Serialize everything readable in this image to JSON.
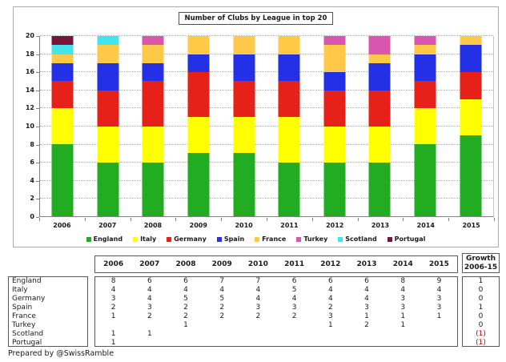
{
  "chart": {
    "title": "Number of Clubs by League in top 20"
  },
  "chart_data": {
    "type": "bar",
    "stacked": true,
    "title": "Number of Clubs by League in top 20",
    "categories": [
      "2006",
      "2007",
      "2008",
      "2009",
      "2010",
      "2011",
      "2012",
      "2013",
      "2014",
      "2015"
    ],
    "series": [
      {
        "name": "England",
        "color": "#21ac21",
        "values": [
          8,
          6,
          6,
          7,
          7,
          6,
          6,
          6,
          8,
          9
        ]
      },
      {
        "name": "Italy",
        "color": "#ffff00",
        "values": [
          4,
          4,
          4,
          4,
          4,
          5,
          4,
          4,
          4,
          4
        ]
      },
      {
        "name": "Germany",
        "color": "#e6211a",
        "values": [
          3,
          4,
          5,
          5,
          4,
          4,
          4,
          4,
          3,
          3
        ]
      },
      {
        "name": "Spain",
        "color": "#2330e6",
        "values": [
          2,
          3,
          2,
          2,
          3,
          3,
          2,
          3,
          3,
          3
        ]
      },
      {
        "name": "France",
        "color": "#ffc846",
        "values": [
          1,
          2,
          2,
          2,
          2,
          2,
          3,
          1,
          1,
          1
        ]
      },
      {
        "name": "Turkey",
        "color": "#d955ae",
        "values": [
          0,
          0,
          1,
          0,
          0,
          0,
          1,
          2,
          1,
          0
        ]
      },
      {
        "name": "Scotland",
        "color": "#42e5ea",
        "values": [
          1,
          1,
          0,
          0,
          0,
          0,
          0,
          0,
          0,
          0
        ]
      },
      {
        "name": "Portugal",
        "color": "#77163a",
        "values": [
          1,
          0,
          0,
          0,
          0,
          0,
          0,
          0,
          0,
          0
        ]
      }
    ],
    "xlabel": "",
    "ylabel": "",
    "ylim": [
      0,
      20
    ],
    "ytick_step": 2,
    "grid": "horizontal-dotted",
    "legend_position": "bottom"
  },
  "table": {
    "year_headers": [
      "2006",
      "2007",
      "2008",
      "2009",
      "2010",
      "2011",
      "2012",
      "2013",
      "2014",
      "2015"
    ],
    "growth_header_line1": "Growth",
    "growth_header_line2": "2006-15",
    "rows": [
      {
        "label": "England",
        "values": [
          "8",
          "6",
          "6",
          "7",
          "7",
          "6",
          "6",
          "6",
          "8",
          "9"
        ],
        "growth": "1",
        "growth_negative": false
      },
      {
        "label": "Italy",
        "values": [
          "4",
          "4",
          "4",
          "4",
          "4",
          "5",
          "4",
          "4",
          "4",
          "4"
        ],
        "growth": "0",
        "growth_negative": false
      },
      {
        "label": "Germany",
        "values": [
          "3",
          "4",
          "5",
          "5",
          "4",
          "4",
          "4",
          "4",
          "3",
          "3"
        ],
        "growth": "0",
        "growth_negative": false
      },
      {
        "label": "Spain",
        "values": [
          "2",
          "3",
          "2",
          "2",
          "3",
          "3",
          "2",
          "3",
          "3",
          "3"
        ],
        "growth": "1",
        "growth_negative": false
      },
      {
        "label": "France",
        "values": [
          "1",
          "2",
          "2",
          "2",
          "2",
          "2",
          "3",
          "1",
          "1",
          "1"
        ],
        "growth": "0",
        "growth_negative": false
      },
      {
        "label": "Turkey",
        "values": [
          "",
          "",
          "1",
          "",
          "",
          "",
          "1",
          "2",
          "1",
          ""
        ],
        "growth": "0",
        "growth_negative": false
      },
      {
        "label": "Scotland",
        "values": [
          "1",
          "1",
          "",
          "",
          "",
          "",
          "",
          "",
          "",
          ""
        ],
        "growth": "(1)",
        "growth_negative": true
      },
      {
        "label": "Portugal",
        "values": [
          "1",
          "",
          "",
          "",
          "",
          "",
          "",
          "",
          "",
          ""
        ],
        "growth": "(1)",
        "growth_negative": true
      }
    ]
  },
  "footer": {
    "credit": "Prepared by @SwissRamble"
  },
  "colors": {
    "negative_growth": "#c00000",
    "axis": "#808080",
    "gridline": "#a8a8a8",
    "table_border": "#595959"
  }
}
